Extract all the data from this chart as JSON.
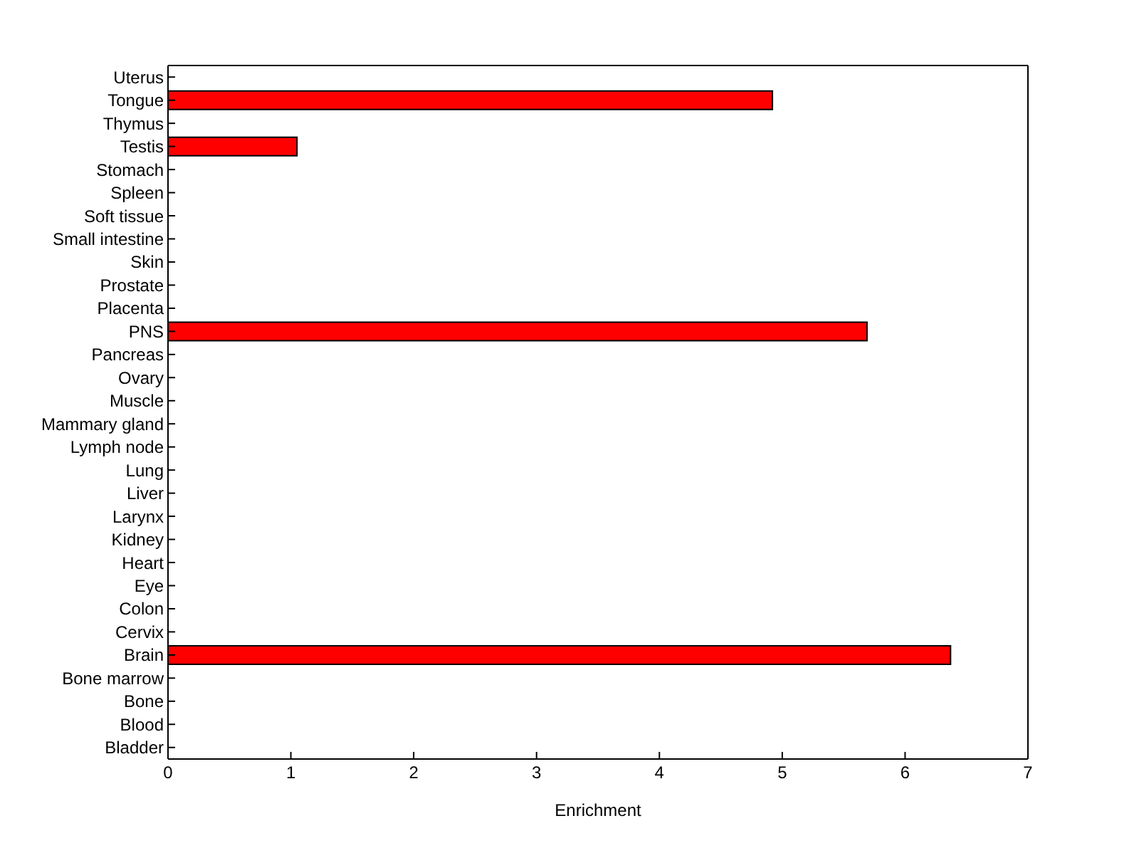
{
  "chart_data": {
    "type": "bar",
    "orientation": "horizontal",
    "xlabel": "Enrichment",
    "categories": [
      "Uterus",
      "Tongue",
      "Thymus",
      "Testis",
      "Stomach",
      "Spleen",
      "Soft tissue",
      "Small intestine",
      "Skin",
      "Prostate",
      "Placenta",
      "PNS",
      "Pancreas",
      "Ovary",
      "Muscle",
      "Mammary gland",
      "Lymph node",
      "Lung",
      "Liver",
      "Larynx",
      "Kidney",
      "Heart",
      "Eye",
      "Colon",
      "Cervix",
      "Brain",
      "Bone marrow",
      "Bone",
      "Blood",
      "Bladder"
    ],
    "values": [
      0,
      4.92,
      0,
      1.05,
      0,
      0,
      0,
      0,
      0,
      0,
      0,
      5.69,
      0,
      0,
      0,
      0,
      0,
      0,
      0,
      0,
      0,
      0,
      0,
      0,
      0,
      6.37,
      0,
      0,
      0,
      0
    ],
    "color": "#ff0000",
    "xlim": [
      0,
      7
    ],
    "xticks": [
      0,
      1,
      2,
      3,
      4,
      5,
      6,
      7
    ],
    "grid": false,
    "legend": false
  }
}
